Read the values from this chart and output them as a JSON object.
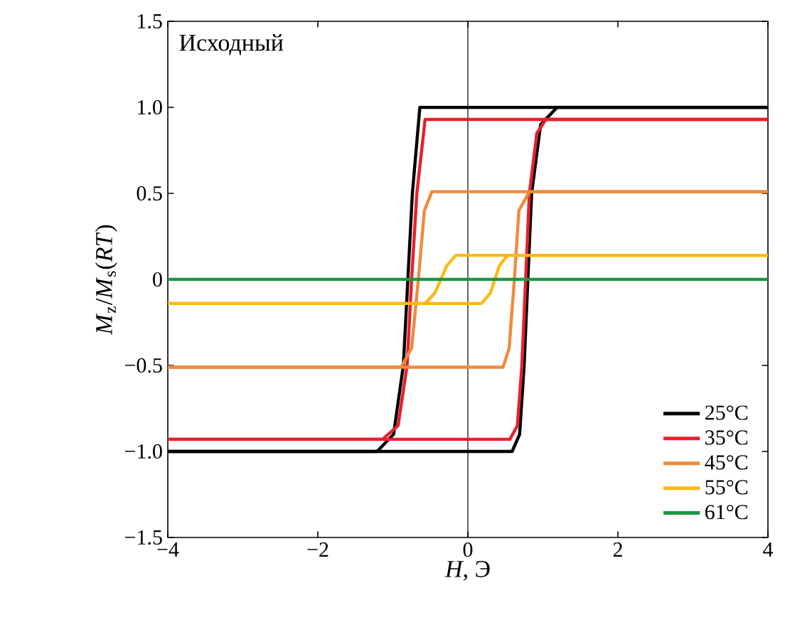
{
  "chart_data": {
    "type": "line",
    "xlabel": "*H*, Э",
    "ylabel": "*M*$_{z}$/*M*$_{s}$(*RT*)",
    "annotations": [
      "Исходный"
    ],
    "xlim": [
      -4,
      4
    ],
    "ylim": [
      -1.5,
      1.5
    ],
    "xticks": [
      {
        "value": -4,
        "label": "−4"
      },
      {
        "value": -2,
        "label": "−2"
      },
      0,
      2,
      4
    ],
    "yticks": [
      {
        "value": -1.5,
        "label": "−1.5"
      },
      {
        "value": -1.0,
        "label": "−1.0"
      },
      {
        "value": -0.5,
        "label": "−0.5"
      },
      0,
      0.5,
      {
        "value": 1.0,
        "label": "1.0"
      },
      1.5
    ],
    "ref_lines": [
      {
        "axis": "x",
        "value": 0,
        "color": "#000000"
      }
    ],
    "legend": "bottom right",
    "grid": false,
    "marker": "none",
    "line_style": "solid",
    "series": [
      {
        "name": "25°C",
        "color": "#000000",
        "x": [
          -4,
          0.59,
          0.69,
          0.75,
          0.8,
          0.85,
          0.97,
          1.19,
          4
        ],
        "values": [
          -1,
          -1,
          -0.9,
          -0.5,
          0,
          0.5,
          0.9,
          1,
          1
        ]
      },
      {
        "color": "#000000",
        "x": [
          -4,
          -1.21,
          -0.99,
          -0.86,
          -0.8,
          -0.74,
          -0.64,
          4
        ],
        "values": [
          -1,
          -1,
          -0.9,
          -0.5,
          0,
          0.5,
          1,
          1
        ]
      },
      {
        "name": "35°C",
        "color": "#e8202a",
        "x": [
          -4,
          0.56,
          0.66,
          0.72,
          0.77,
          0.82,
          0.92,
          1.04,
          4
        ],
        "values": [
          -0.93,
          -0.93,
          -0.85,
          -0.5,
          0,
          0.5,
          0.85,
          0.93,
          0.93
        ]
      },
      {
        "color": "#e8202a",
        "x": [
          -4,
          -1.14,
          -0.93,
          -0.81,
          -0.75,
          -0.68,
          -0.57,
          4
        ],
        "values": [
          -0.93,
          -0.93,
          -0.85,
          -0.5,
          0,
          0.5,
          0.93,
          0.93
        ]
      },
      {
        "name": "45°C",
        "color": "#f08a3c",
        "x": [
          -4,
          0.47,
          0.55,
          0.62,
          0.68,
          0.82,
          4
        ],
        "values": [
          -0.51,
          -0.51,
          -0.4,
          0,
          0.4,
          0.51,
          0.51
        ]
      },
      {
        "color": "#f08a3c",
        "x": [
          -4,
          -0.89,
          -0.75,
          -0.66,
          -0.58,
          -0.48,
          4
        ],
        "values": [
          -0.51,
          -0.51,
          -0.4,
          0,
          0.4,
          0.51,
          0.51
        ]
      },
      {
        "name": "55°C",
        "color": "#fdb913",
        "x": [
          -4,
          0.18,
          0.3,
          0.36,
          0.42,
          0.53,
          4
        ],
        "values": [
          -0.14,
          -0.14,
          -0.08,
          0,
          0.08,
          0.14,
          0.14
        ]
      },
      {
        "color": "#fdb913",
        "x": [
          -4,
          -0.57,
          -0.44,
          -0.36,
          -0.28,
          -0.16,
          4
        ],
        "values": [
          -0.14,
          -0.14,
          -0.08,
          0,
          0.08,
          0.14,
          0.14
        ]
      },
      {
        "name": "61°C",
        "color": "#1a9641",
        "x": [
          -4,
          4
        ],
        "values": [
          0,
          0
        ]
      }
    ]
  }
}
